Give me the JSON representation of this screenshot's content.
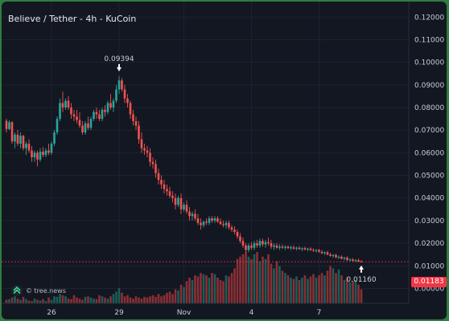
{
  "chart_data": {
    "type": "candlestick",
    "title": "Believe / Tether - 4h - KuCoin",
    "watermark": "© tree.news",
    "y_axis": {
      "ticks": [
        "0.12000",
        "0.11000",
        "0.10000",
        "0.09000",
        "0.08000",
        "0.07000",
        "0.06000",
        "0.05000",
        "0.04000",
        "0.03000",
        "0.02000",
        "0.01000",
        "0.00000"
      ],
      "range": [
        -0.008,
        0.124
      ]
    },
    "x_axis": {
      "ticks": [
        "26",
        "29",
        "Nov",
        "4",
        "7"
      ],
      "tick_index": [
        16,
        40,
        63,
        87,
        111
      ]
    },
    "annotations": {
      "high_label": "0.09394",
      "high_index": 40,
      "low_label": "0.01160",
      "low_index": 126
    },
    "last_price": "0.01183",
    "last_value": 0.01183,
    "colors": {
      "up": "#26a69a",
      "down": "#ef5350",
      "volume_up": "#1b5e5a",
      "volume_down": "#8c2f35",
      "background": "#131722",
      "border": "#2f7d3f"
    },
    "candles": [
      [
        0.0741,
        0.075,
        0.069,
        0.0705
      ],
      [
        0.0705,
        0.0745,
        0.07,
        0.0735
      ],
      [
        0.0735,
        0.074,
        0.064,
        0.065
      ],
      [
        0.065,
        0.069,
        0.062,
        0.068
      ],
      [
        0.068,
        0.07,
        0.063,
        0.064
      ],
      [
        0.064,
        0.069,
        0.062,
        0.0675
      ],
      [
        0.0675,
        0.068,
        0.061,
        0.062
      ],
      [
        0.062,
        0.065,
        0.059,
        0.064
      ],
      [
        0.064,
        0.066,
        0.06,
        0.061
      ],
      [
        0.061,
        0.063,
        0.056,
        0.058
      ],
      [
        0.058,
        0.061,
        0.056,
        0.06
      ],
      [
        0.06,
        0.061,
        0.054,
        0.057
      ],
      [
        0.057,
        0.062,
        0.056,
        0.0605
      ],
      [
        0.0605,
        0.0625,
        0.058,
        0.059
      ],
      [
        0.059,
        0.062,
        0.058,
        0.061
      ],
      [
        0.061,
        0.064,
        0.059,
        0.06
      ],
      [
        0.06,
        0.065,
        0.059,
        0.064
      ],
      [
        0.064,
        0.07,
        0.063,
        0.069
      ],
      [
        0.069,
        0.076,
        0.068,
        0.075
      ],
      [
        0.075,
        0.084,
        0.074,
        0.082
      ],
      [
        0.082,
        0.087,
        0.078,
        0.08
      ],
      [
        0.08,
        0.084,
        0.079,
        0.083
      ],
      [
        0.083,
        0.085,
        0.079,
        0.08
      ],
      [
        0.08,
        0.082,
        0.075,
        0.077
      ],
      [
        0.077,
        0.079,
        0.074,
        0.076
      ],
      [
        0.076,
        0.079,
        0.073,
        0.0745
      ],
      [
        0.0745,
        0.078,
        0.071,
        0.072
      ],
      [
        0.072,
        0.074,
        0.068,
        0.069
      ],
      [
        0.069,
        0.074,
        0.068,
        0.073
      ],
      [
        0.073,
        0.076,
        0.07,
        0.071
      ],
      [
        0.071,
        0.076,
        0.07,
        0.075
      ],
      [
        0.075,
        0.079,
        0.074,
        0.078
      ],
      [
        0.078,
        0.08,
        0.075,
        0.077
      ],
      [
        0.077,
        0.079,
        0.074,
        0.075
      ],
      [
        0.075,
        0.08,
        0.074,
        0.079
      ],
      [
        0.079,
        0.081,
        0.076,
        0.078
      ],
      [
        0.078,
        0.083,
        0.077,
        0.082
      ],
      [
        0.082,
        0.086,
        0.079,
        0.08
      ],
      [
        0.08,
        0.084,
        0.078,
        0.083
      ],
      [
        0.083,
        0.09,
        0.082,
        0.088
      ],
      [
        0.088,
        0.0939,
        0.086,
        0.092
      ],
      [
        0.092,
        0.093,
        0.087,
        0.088
      ],
      [
        0.088,
        0.09,
        0.082,
        0.084
      ],
      [
        0.084,
        0.086,
        0.08,
        0.082
      ],
      [
        0.082,
        0.083,
        0.075,
        0.077
      ],
      [
        0.077,
        0.079,
        0.072,
        0.074
      ],
      [
        0.074,
        0.076,
        0.07,
        0.072
      ],
      [
        0.072,
        0.074,
        0.064,
        0.066
      ],
      [
        0.066,
        0.069,
        0.06,
        0.062
      ],
      [
        0.062,
        0.064,
        0.059,
        0.061
      ],
      [
        0.061,
        0.063,
        0.058,
        0.06
      ],
      [
        0.06,
        0.062,
        0.054,
        0.056
      ],
      [
        0.056,
        0.058,
        0.053,
        0.055
      ],
      [
        0.055,
        0.057,
        0.049,
        0.051
      ],
      [
        0.051,
        0.053,
        0.046,
        0.048
      ],
      [
        0.048,
        0.05,
        0.044,
        0.046
      ],
      [
        0.046,
        0.048,
        0.042,
        0.044
      ],
      [
        0.044,
        0.046,
        0.041,
        0.043
      ],
      [
        0.043,
        0.045,
        0.04,
        0.041
      ],
      [
        0.041,
        0.043,
        0.038,
        0.04
      ],
      [
        0.04,
        0.042,
        0.035,
        0.037
      ],
      [
        0.037,
        0.041,
        0.036,
        0.04
      ],
      [
        0.04,
        0.042,
        0.033,
        0.035
      ],
      [
        0.035,
        0.038,
        0.034,
        0.037
      ],
      [
        0.037,
        0.039,
        0.033,
        0.034
      ],
      [
        0.034,
        0.036,
        0.03,
        0.032
      ],
      [
        0.032,
        0.034,
        0.03,
        0.033
      ],
      [
        0.033,
        0.035,
        0.03,
        0.031
      ],
      [
        0.031,
        0.033,
        0.028,
        0.029
      ],
      [
        0.029,
        0.031,
        0.026,
        0.028
      ],
      [
        0.028,
        0.03,
        0.027,
        0.0295
      ],
      [
        0.0295,
        0.031,
        0.028,
        0.029
      ],
      [
        0.029,
        0.032,
        0.028,
        0.031
      ],
      [
        0.031,
        0.032,
        0.029,
        0.03
      ],
      [
        0.03,
        0.032,
        0.029,
        0.031
      ],
      [
        0.031,
        0.032,
        0.029,
        0.0295
      ],
      [
        0.0295,
        0.031,
        0.028,
        0.0285
      ],
      [
        0.0285,
        0.03,
        0.027,
        0.028
      ],
      [
        0.028,
        0.03,
        0.0265,
        0.029
      ],
      [
        0.029,
        0.03,
        0.026,
        0.027
      ],
      [
        0.027,
        0.028,
        0.025,
        0.026
      ],
      [
        0.026,
        0.0275,
        0.024,
        0.025
      ],
      [
        0.025,
        0.026,
        0.022,
        0.023
      ],
      [
        0.023,
        0.0245,
        0.02,
        0.021
      ],
      [
        0.021,
        0.0225,
        0.018,
        0.019
      ],
      [
        0.019,
        0.02,
        0.016,
        0.017
      ],
      [
        0.017,
        0.02,
        0.016,
        0.019
      ],
      [
        0.019,
        0.0205,
        0.017,
        0.018
      ],
      [
        0.018,
        0.021,
        0.017,
        0.02
      ],
      [
        0.02,
        0.0215,
        0.018,
        0.019
      ],
      [
        0.019,
        0.022,
        0.018,
        0.021
      ],
      [
        0.021,
        0.022,
        0.0185,
        0.0195
      ],
      [
        0.0195,
        0.0215,
        0.018,
        0.0205
      ],
      [
        0.0205,
        0.0225,
        0.019,
        0.02
      ],
      [
        0.02,
        0.0215,
        0.0175,
        0.0185
      ],
      [
        0.0185,
        0.02,
        0.017,
        0.019
      ],
      [
        0.019,
        0.02,
        0.0175,
        0.018
      ],
      [
        0.018,
        0.0195,
        0.017,
        0.0185
      ],
      [
        0.0185,
        0.0195,
        0.0175,
        0.018
      ],
      [
        0.018,
        0.019,
        0.017,
        0.0185
      ],
      [
        0.0185,
        0.019,
        0.0175,
        0.0178
      ],
      [
        0.0178,
        0.019,
        0.017,
        0.0182
      ],
      [
        0.0182,
        0.019,
        0.0172,
        0.0176
      ],
      [
        0.0176,
        0.0185,
        0.0168,
        0.018
      ],
      [
        0.018,
        0.0188,
        0.017,
        0.0174
      ],
      [
        0.0174,
        0.0182,
        0.0165,
        0.0178
      ],
      [
        0.0178,
        0.0185,
        0.0168,
        0.0172
      ],
      [
        0.0172,
        0.018,
        0.0164,
        0.0176
      ],
      [
        0.0176,
        0.0182,
        0.0166,
        0.017
      ],
      [
        0.017,
        0.0178,
        0.0162,
        0.0166
      ],
      [
        0.0166,
        0.0174,
        0.0158,
        0.017
      ],
      [
        0.017,
        0.0175,
        0.0158,
        0.0162
      ],
      [
        0.0162,
        0.017,
        0.0152,
        0.0156
      ],
      [
        0.0156,
        0.0164,
        0.0148,
        0.016
      ],
      [
        0.016,
        0.0166,
        0.0146,
        0.015
      ],
      [
        0.015,
        0.0158,
        0.014,
        0.0144
      ],
      [
        0.0144,
        0.0152,
        0.0136,
        0.0148
      ],
      [
        0.0148,
        0.0154,
        0.0134,
        0.0138
      ],
      [
        0.0138,
        0.0146,
        0.013,
        0.014
      ],
      [
        0.014,
        0.0146,
        0.0128,
        0.0132
      ],
      [
        0.0132,
        0.014,
        0.0124,
        0.0136
      ],
      [
        0.0136,
        0.0142,
        0.0122,
        0.0126
      ],
      [
        0.0126,
        0.0134,
        0.012,
        0.0128
      ],
      [
        0.0128,
        0.0134,
        0.0118,
        0.0122
      ],
      [
        0.0122,
        0.013,
        0.0116,
        0.0125
      ],
      [
        0.0125,
        0.0132,
        0.0116,
        0.0119
      ],
      [
        0.0119,
        0.0126,
        0.0116,
        0.0118
      ]
    ],
    "volume": [
      1.5,
      1.8,
      2.5,
      3.0,
      2.0,
      1.5,
      2.8,
      1.8,
      1.2,
      1.0,
      2.0,
      1.5,
      1.2,
      1.8,
      1.0,
      2.5,
      1.5,
      3.0,
      2.8,
      4.0,
      3.5,
      3.0,
      2.0,
      1.8,
      3.5,
      2.5,
      2.0,
      1.5,
      2.8,
      3.0,
      2.5,
      2.0,
      1.8,
      3.5,
      3.0,
      2.5,
      2.0,
      3.0,
      4.0,
      5.0,
      6.5,
      4.5,
      3.0,
      3.5,
      2.5,
      2.0,
      3.0,
      2.5,
      2.0,
      2.8,
      2.5,
      3.0,
      3.5,
      2.8,
      4.0,
      3.0,
      3.5,
      4.5,
      5.0,
      4.0,
      6.0,
      5.5,
      8.0,
      7.0,
      9.5,
      11.0,
      10.0,
      12.0,
      11.5,
      13.0,
      12.5,
      12.0,
      11.0,
      13.0,
      12.5,
      11.0,
      10.0,
      9.5,
      12.0,
      11.5,
      13.0,
      15.0,
      19.0,
      20.0,
      21.0,
      22.0,
      20.0,
      19.0,
      21.0,
      22.0,
      18.0,
      20.0,
      19.0,
      21.0,
      17.0,
      15.0,
      18.0,
      16.0,
      14.0,
      13.0,
      12.0,
      11.0,
      10.5,
      11.5,
      10.0,
      11.0,
      12.0,
      10.5,
      11.5,
      12.5,
      11.0,
      12.0,
      13.0,
      12.0,
      14.0,
      16.0,
      15.0,
      13.0,
      14.5,
      12.0,
      10.0,
      11.0,
      9.0,
      9.5,
      10.0,
      8.0,
      6.0
    ]
  }
}
